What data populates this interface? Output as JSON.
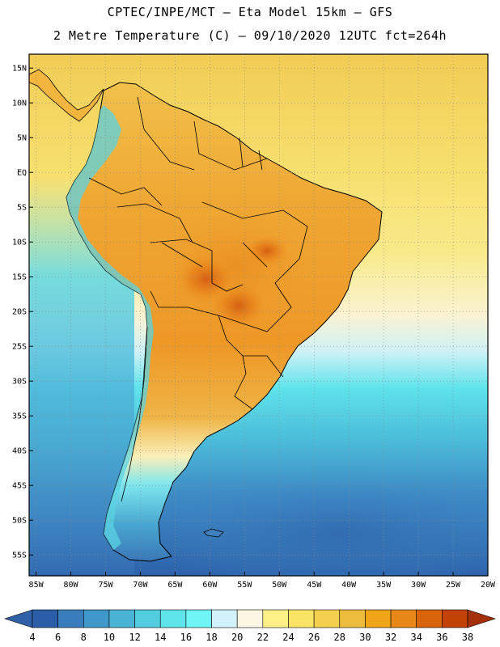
{
  "title": {
    "line1": "CPTEC/INPE/MCT –  Eta Model 15km – GFS",
    "line2": "2 Metre Temperature (C) – 09/10/2020 12UTC fct=264h"
  },
  "map": {
    "region": "South America",
    "lat_range": [
      -58,
      17
    ],
    "lon_range": [
      -86,
      -20
    ],
    "lat_ticks": [
      {
        "value": 15,
        "label": "15N"
      },
      {
        "value": 10,
        "label": "10N"
      },
      {
        "value": 5,
        "label": "5N"
      },
      {
        "value": 0,
        "label": "EQ"
      },
      {
        "value": -5,
        "label": "5S"
      },
      {
        "value": -10,
        "label": "10S"
      },
      {
        "value": -15,
        "label": "15S"
      },
      {
        "value": -20,
        "label": "20S"
      },
      {
        "value": -25,
        "label": "25S"
      },
      {
        "value": -30,
        "label": "30S"
      },
      {
        "value": -35,
        "label": "35S"
      },
      {
        "value": -40,
        "label": "40S"
      },
      {
        "value": -45,
        "label": "45S"
      },
      {
        "value": -50,
        "label": "50S"
      },
      {
        "value": -55,
        "label": "55S"
      }
    ],
    "lon_ticks": [
      {
        "value": -85,
        "label": "85W"
      },
      {
        "value": -80,
        "label": "80W"
      },
      {
        "value": -75,
        "label": "75W"
      },
      {
        "value": -70,
        "label": "70W"
      },
      {
        "value": -65,
        "label": "65W"
      },
      {
        "value": -60,
        "label": "60W"
      },
      {
        "value": -55,
        "label": "55W"
      },
      {
        "value": -50,
        "label": "50W"
      },
      {
        "value": -45,
        "label": "45W"
      },
      {
        "value": -40,
        "label": "40W"
      },
      {
        "value": -35,
        "label": "35W"
      },
      {
        "value": -30,
        "label": "30W"
      },
      {
        "value": -25,
        "label": "25W"
      },
      {
        "value": -20,
        "label": "20W"
      }
    ]
  },
  "colorbar": {
    "unit": "C",
    "bins": [
      {
        "color": "#2a5ea8"
      },
      {
        "color": "#3a7dbd"
      },
      {
        "color": "#3f98c9"
      },
      {
        "color": "#4ab4d6"
      },
      {
        "color": "#52cde0"
      },
      {
        "color": "#5fe4ec"
      },
      {
        "color": "#6ff5f5"
      },
      {
        "color": "#d2f2fb"
      },
      {
        "color": "#fdf6e3"
      },
      {
        "color": "#fcf086"
      },
      {
        "color": "#f9e466"
      },
      {
        "color": "#f3d04e"
      },
      {
        "color": "#edbc3c"
      },
      {
        "color": "#f0a418"
      },
      {
        "color": "#e78819"
      },
      {
        "color": "#d9640c"
      },
      {
        "color": "#c34307"
      }
    ],
    "under_color": "#3060a8",
    "over_color": "#a4300a",
    "labels": [
      "4",
      "6",
      "8",
      "10",
      "12",
      "14",
      "16",
      "18",
      "20",
      "22",
      "24",
      "26",
      "28",
      "30",
      "32",
      "34",
      "36",
      "38"
    ]
  }
}
